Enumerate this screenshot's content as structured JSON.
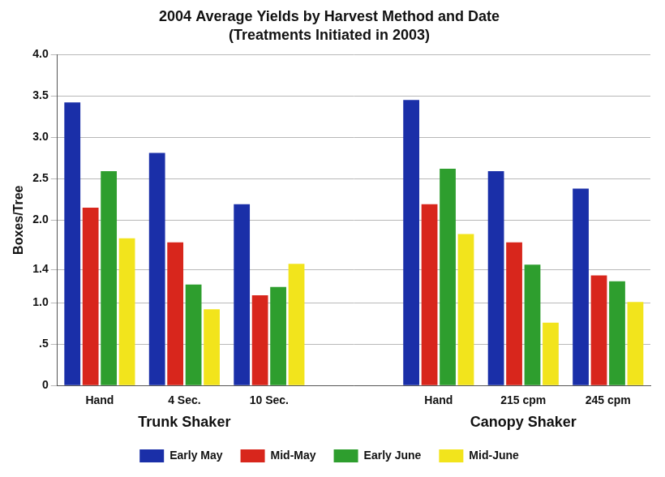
{
  "chart_data": {
    "type": "bar",
    "title": "2004 Average Yields by Harvest Method and Date",
    "subtitle": "(Treatments Initiated in 2003)",
    "y_label": "Boxes/Tree",
    "categories": [
      "Hand",
      "4 Sec.",
      "10 Sec.",
      null,
      "Hand",
      "215 cpm",
      "245 cpm"
    ],
    "category_groups": [
      {
        "label": "Trunk Shaker",
        "categories": [
          "Hand",
          "4 Sec.",
          "10 Sec."
        ]
      },
      {
        "label": "Canopy Shaker",
        "categories": [
          "Hand",
          "215 cpm",
          "245 cpm"
        ]
      }
    ],
    "series": [
      {
        "name": "Early May",
        "color": "#1a2fa8",
        "values": [
          3.42,
          2.81,
          2.19,
          null,
          3.45,
          2.59,
          2.38
        ]
      },
      {
        "name": "Mid-May",
        "color": "#d8261c",
        "values": [
          2.15,
          1.73,
          1.09,
          null,
          2.19,
          1.73,
          1.33
        ]
      },
      {
        "name": "Early June",
        "color": "#2e9e2e",
        "values": [
          2.59,
          1.22,
          1.19,
          null,
          2.62,
          1.46,
          1.26
        ]
      },
      {
        "name": "Mid-June",
        "color": "#f2e41c",
        "values": [
          1.78,
          0.92,
          1.47,
          null,
          1.83,
          0.76,
          1.01
        ]
      }
    ],
    "ylim": [
      0,
      4
    ],
    "yticks": [
      0,
      {
        "value": 0.5,
        "label": ".5"
      },
      {
        "value": 1,
        "label": "1.0"
      },
      1.4,
      {
        "value": 2,
        "label": "2.0"
      },
      2.5,
      {
        "value": 3,
        "label": "3.0"
      },
      3.5,
      {
        "value": 4,
        "label": "4.0"
      }
    ],
    "grid": true,
    "legend": "bottom"
  }
}
